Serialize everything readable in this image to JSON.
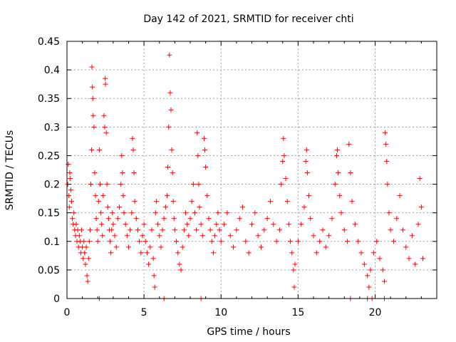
{
  "chart_data": {
    "type": "scatter",
    "title": "Day 142 of 2021, SRMTID for receiver chti",
    "xlabel": "GPS time / hours",
    "ylabel": "SRMTID / TECUs",
    "xlim": [
      0,
      24
    ],
    "ylim": [
      0,
      0.45
    ],
    "xticks": [
      0,
      5,
      10,
      15,
      20
    ],
    "xtick_labels": [
      "0",
      "5",
      "10",
      "15",
      "20"
    ],
    "yticks": [
      0,
      0.05,
      0.1,
      0.15,
      0.2,
      0.25,
      0.3,
      0.35,
      0.4,
      0.45
    ],
    "ytick_labels": [
      "0",
      "0.05",
      "0.1",
      "0.15",
      "0.2",
      "0.25",
      "0.3",
      "0.35",
      "0.4",
      "0.45"
    ],
    "grid": true,
    "marker": "+",
    "color": "#ff0000",
    "series": [
      {
        "values": [
          [
            0.05,
            0.2
          ],
          [
            0.08,
            0.235
          ],
          [
            0.12,
            0.18
          ],
          [
            0.15,
            0.16
          ],
          [
            0.18,
            0.22
          ],
          [
            0.2,
            0.21
          ],
          [
            0.25,
            0.19
          ],
          [
            0.3,
            0.17
          ],
          [
            0.35,
            0.14
          ],
          [
            0.4,
            0.13
          ],
          [
            0.45,
            0.15
          ],
          [
            0.5,
            0.12
          ],
          [
            0.55,
            0.11
          ],
          [
            0.6,
            0.13
          ],
          [
            0.65,
            0.1
          ],
          [
            0.7,
            0.12
          ],
          [
            0.75,
            0.09
          ],
          [
            0.8,
            0.11
          ],
          [
            0.85,
            0.1
          ],
          [
            0.9,
            0.08
          ],
          [
            0.95,
            0.12
          ],
          [
            1.0,
            0.09
          ],
          [
            1.05,
            0.07
          ],
          [
            1.1,
            0.1
          ],
          [
            1.15,
            0.08
          ],
          [
            1.2,
            0.06
          ],
          [
            1.25,
            0.09
          ],
          [
            1.3,
            0.04
          ],
          [
            1.35,
            0.03
          ],
          [
            1.4,
            0.07
          ],
          [
            1.45,
            0.1
          ],
          [
            1.5,
            0.12
          ],
          [
            1.55,
            0.2
          ],
          [
            1.6,
            0.26
          ],
          [
            1.62,
            0.405
          ],
          [
            1.65,
            0.37
          ],
          [
            1.68,
            0.35
          ],
          [
            1.7,
            0.32
          ],
          [
            1.75,
            0.3
          ],
          [
            1.8,
            0.22
          ],
          [
            1.85,
            0.18
          ],
          [
            1.9,
            0.14
          ],
          [
            1.95,
            0.12
          ],
          [
            2.0,
            0.1
          ],
          [
            2.05,
            0.17
          ],
          [
            2.1,
            0.26
          ],
          [
            2.15,
            0.2
          ],
          [
            2.2,
            0.15
          ],
          [
            2.25,
            0.13
          ],
          [
            2.3,
            0.11
          ],
          [
            2.35,
            0.18
          ],
          [
            2.4,
            0.32
          ],
          [
            2.45,
            0.3
          ],
          [
            2.48,
            0.385
          ],
          [
            2.5,
            0.375
          ],
          [
            2.55,
            0.29
          ],
          [
            2.6,
            0.2
          ],
          [
            2.65,
            0.16
          ],
          [
            2.7,
            0.14
          ],
          [
            2.75,
            0.12
          ],
          [
            2.8,
            0.1
          ],
          [
            2.85,
            0.08
          ],
          [
            2.9,
            0.12
          ],
          [
            2.95,
            0.15
          ],
          [
            3.0,
            0.13
          ],
          [
            3.1,
            0.11
          ],
          [
            3.2,
            0.09
          ],
          [
            3.3,
            0.14
          ],
          [
            3.4,
            0.16
          ],
          [
            3.5,
            0.2
          ],
          [
            3.55,
            0.25
          ],
          [
            3.6,
            0.22
          ],
          [
            3.65,
            0.18
          ],
          [
            3.7,
            0.15
          ],
          [
            3.8,
            0.13
          ],
          [
            3.9,
            0.11
          ],
          [
            4.0,
            0.09
          ],
          [
            4.1,
            0.12
          ],
          [
            4.2,
            0.15
          ],
          [
            4.25,
            0.28
          ],
          [
            4.3,
            0.26
          ],
          [
            4.35,
            0.22
          ],
          [
            4.4,
            0.17
          ],
          [
            4.5,
            0.14
          ],
          [
            4.6,
            0.12
          ],
          [
            4.7,
            0.1
          ],
          [
            4.8,
            0.08
          ],
          [
            4.9,
            0.11
          ],
          [
            5.0,
            0.13
          ],
          [
            5.1,
            0.1
          ],
          [
            5.2,
            0.08
          ],
          [
            5.3,
            0.06
          ],
          [
            5.4,
            0.09
          ],
          [
            5.5,
            0.12
          ],
          [
            5.6,
            0.07
          ],
          [
            5.65,
            0.04
          ],
          [
            5.7,
            0.02
          ],
          [
            5.75,
            0.15
          ],
          [
            5.8,
            0.17
          ],
          [
            5.9,
            0.13
          ],
          [
            6.0,
            0.11
          ],
          [
            6.1,
            0.09
          ],
          [
            6.2,
            0.12
          ],
          [
            6.3,
            0.14
          ],
          [
            6.4,
            0.16
          ],
          [
            6.5,
            0.18
          ],
          [
            6.55,
            0.23
          ],
          [
            6.6,
            0.3
          ],
          [
            6.65,
            0.426
          ],
          [
            6.7,
            0.36
          ],
          [
            6.75,
            0.33
          ],
          [
            6.8,
            0.26
          ],
          [
            6.85,
            0.22
          ],
          [
            6.9,
            0.17
          ],
          [
            6.95,
            0.14
          ],
          [
            7.0,
            0.12
          ],
          [
            7.1,
            0.1
          ],
          [
            7.2,
            0.08
          ],
          [
            7.3,
            0.06
          ],
          [
            7.4,
            0.05
          ],
          [
            7.5,
            0.09
          ],
          [
            7.6,
            0.12
          ],
          [
            7.7,
            0.15
          ],
          [
            7.8,
            0.13
          ],
          [
            7.9,
            0.11
          ],
          [
            8.0,
            0.14
          ],
          [
            8.1,
            0.17
          ],
          [
            8.2,
            0.2
          ],
          [
            8.3,
            0.15
          ],
          [
            8.4,
            0.12
          ],
          [
            8.45,
            0.29
          ],
          [
            8.5,
            0.25
          ],
          [
            8.55,
            0.2
          ],
          [
            8.6,
            0.16
          ],
          [
            8.7,
            0.13
          ],
          [
            8.8,
            0.11
          ],
          [
            8.9,
            0.28
          ],
          [
            8.95,
            0.26
          ],
          [
            9.0,
            0.23
          ],
          [
            9.1,
            0.18
          ],
          [
            9.2,
            0.14
          ],
          [
            9.3,
            0.12
          ],
          [
            9.4,
            0.1
          ],
          [
            9.5,
            0.08
          ],
          [
            9.6,
            0.11
          ],
          [
            9.7,
            0.13
          ],
          [
            9.8,
            0.15
          ],
          [
            9.9,
            0.12
          ],
          [
            10.0,
            0.1
          ],
          [
            10.2,
            0.13
          ],
          [
            10.4,
            0.15
          ],
          [
            10.6,
            0.11
          ],
          [
            10.8,
            0.09
          ],
          [
            11.0,
            0.12
          ],
          [
            11.2,
            0.14
          ],
          [
            11.4,
            0.16
          ],
          [
            11.6,
            0.1
          ],
          [
            11.8,
            0.08
          ],
          [
            12.0,
            0.13
          ],
          [
            12.2,
            0.15
          ],
          [
            12.4,
            0.11
          ],
          [
            12.6,
            0.09
          ],
          [
            12.8,
            0.12
          ],
          [
            13.0,
            0.14
          ],
          [
            13.2,
            0.17
          ],
          [
            13.4,
            0.13
          ],
          [
            13.6,
            0.1
          ],
          [
            13.8,
            0.12
          ],
          [
            13.9,
            0.2
          ],
          [
            14.0,
            0.24
          ],
          [
            14.05,
            0.28
          ],
          [
            14.1,
            0.25
          ],
          [
            14.2,
            0.21
          ],
          [
            14.3,
            0.17
          ],
          [
            14.4,
            0.13
          ],
          [
            14.5,
            0.1
          ],
          [
            14.6,
            0.08
          ],
          [
            14.7,
            0.05
          ],
          [
            14.75,
            0.02
          ],
          [
            14.8,
            0.06
          ],
          [
            15.0,
            0.1
          ],
          [
            15.2,
            0.13
          ],
          [
            15.4,
            0.16
          ],
          [
            15.5,
            0.24
          ],
          [
            15.55,
            0.26
          ],
          [
            15.6,
            0.22
          ],
          [
            15.7,
            0.18
          ],
          [
            15.8,
            0.14
          ],
          [
            16.0,
            0.11
          ],
          [
            16.2,
            0.08
          ],
          [
            16.4,
            0.1
          ],
          [
            16.6,
            0.12
          ],
          [
            16.8,
            0.09
          ],
          [
            17.0,
            0.11
          ],
          [
            17.2,
            0.14
          ],
          [
            17.4,
            0.2
          ],
          [
            17.5,
            0.25
          ],
          [
            17.55,
            0.26
          ],
          [
            17.6,
            0.22
          ],
          [
            17.7,
            0.18
          ],
          [
            17.8,
            0.15
          ],
          [
            18.0,
            0.12
          ],
          [
            18.2,
            0.1
          ],
          [
            18.3,
            0.27
          ],
          [
            18.4,
            0.22
          ],
          [
            18.5,
            0.17
          ],
          [
            18.7,
            0.13
          ],
          [
            18.9,
            0.1
          ],
          [
            19.1,
            0.08
          ],
          [
            19.3,
            0.06
          ],
          [
            19.5,
            0.04
          ],
          [
            19.6,
            0.02
          ],
          [
            19.7,
            0.05
          ],
          [
            19.9,
            0.08
          ],
          [
            20.1,
            0.1
          ],
          [
            20.3,
            0.07
          ],
          [
            20.5,
            0.05
          ],
          [
            20.6,
            0.03
          ],
          [
            20.65,
            0.29
          ],
          [
            20.7,
            0.27
          ],
          [
            20.75,
            0.24
          ],
          [
            20.8,
            0.2
          ],
          [
            20.9,
            0.15
          ],
          [
            21.0,
            0.12
          ],
          [
            21.2,
            0.1
          ],
          [
            21.4,
            0.14
          ],
          [
            21.6,
            0.18
          ],
          [
            21.8,
            0.12
          ],
          [
            22.0,
            0.09
          ],
          [
            22.2,
            0.07
          ],
          [
            22.4,
            0.11
          ],
          [
            22.6,
            0.06
          ],
          [
            22.8,
            0.13
          ],
          [
            22.9,
            0.21
          ],
          [
            23.0,
            0.16
          ],
          [
            23.1,
            0.07
          ]
        ]
      },
      {
        "values": [
          [
            2.1,
            0
          ],
          [
            6.3,
            0
          ],
          [
            8.7,
            0
          ],
          [
            18.4,
            0
          ],
          [
            19.5,
            0
          ],
          [
            19.8,
            0
          ],
          [
            20.6,
            0
          ]
        ]
      }
    ]
  }
}
